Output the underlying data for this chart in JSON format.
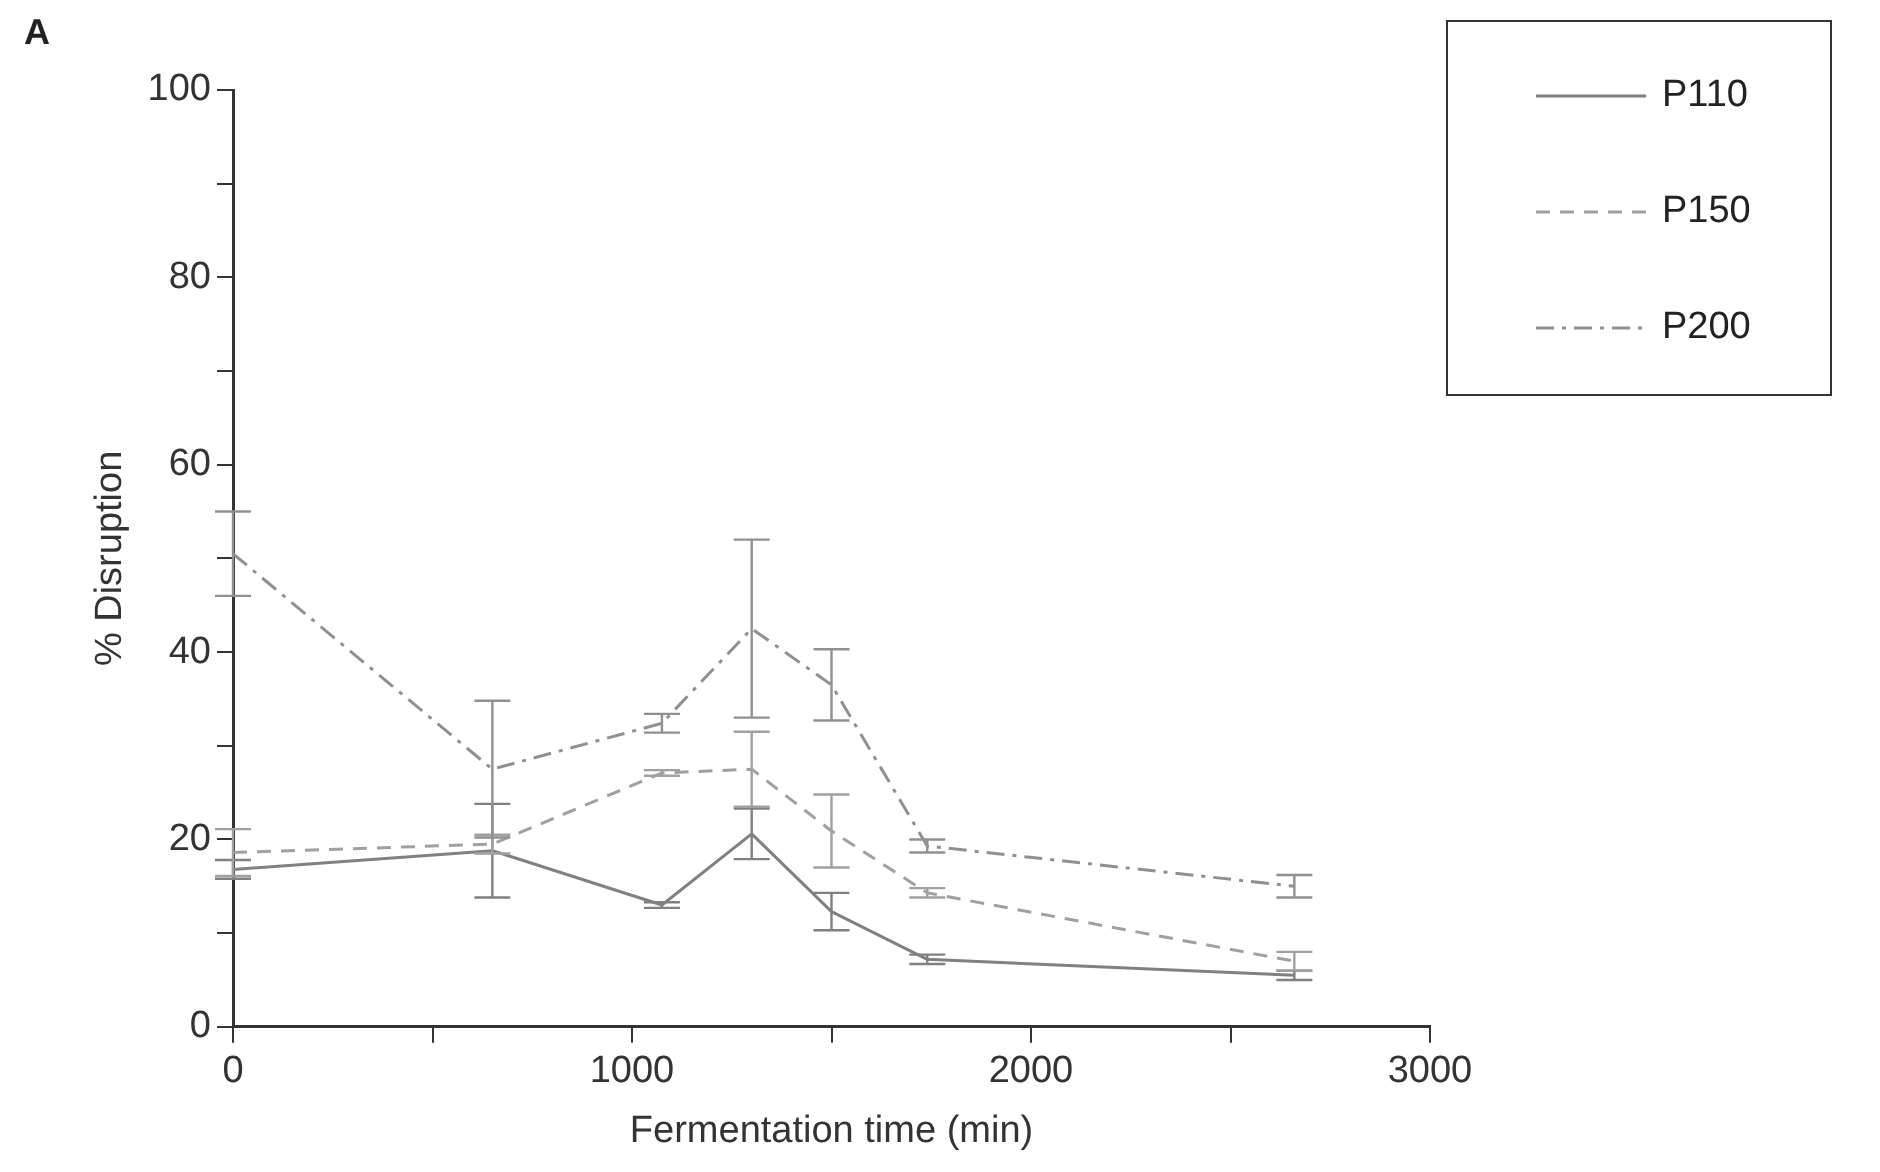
{
  "chart_data": {
    "type": "line",
    "xlabel": "Fermentation time (min)",
    "ylabel": "% Disruption",
    "annotations": [
      "A"
    ],
    "xlim": [
      0,
      3000
    ],
    "xticks": [
      0,
      {
        "value": 500,
        "label": null
      },
      1000,
      {
        "value": 1500,
        "label": null
      },
      2000,
      {
        "value": 2500,
        "label": null
      },
      3000
    ],
    "ylim": [
      0,
      100
    ],
    "yticks": [
      0,
      {
        "value": 10,
        "label": null
      },
      20,
      {
        "value": 30,
        "label": null
      },
      40,
      {
        "value": 50,
        "label": null
      },
      60,
      {
        "value": 70,
        "label": null
      },
      80,
      {
        "value": 90,
        "label": null
      },
      100
    ],
    "grid": false,
    "legend": "top right",
    "marker": "none",
    "series": [
      {
        "name": "P110",
        "color": "#808080",
        "line_style": "solid",
        "x": [
          0,
          650,
          1075,
          1300,
          1500,
          1740,
          2660
        ],
        "values": [
          16.8,
          18.8,
          13.0,
          20.6,
          12.3,
          7.2,
          5.5
        ],
        "errors": [
          1,
          5,
          0.3,
          2.7,
          2,
          0.5,
          0.5
        ]
      },
      {
        "name": "P150",
        "color": "#a0a0a0",
        "line_style": "dashed",
        "x": [
          0,
          650,
          1075,
          1300,
          1500,
          1740,
          2660
        ],
        "values": [
          18.6,
          19.5,
          27.1,
          27.5,
          20.9,
          14.3,
          7.0
        ],
        "errors": [
          2.5,
          1,
          0.3,
          4,
          3.9,
          0.5,
          1
        ]
      },
      {
        "name": "P200",
        "color": "#909090",
        "line_style": "dashdot",
        "x": [
          0,
          650,
          1075,
          1300,
          1500,
          1740,
          2660
        ],
        "values": [
          50.5,
          27.5,
          32.4,
          42.5,
          36.5,
          19.3,
          15.0
        ],
        "errors": [
          4.5,
          7.3,
          1,
          9.5,
          3.8,
          0.7,
          1.2
        ]
      }
    ]
  }
}
